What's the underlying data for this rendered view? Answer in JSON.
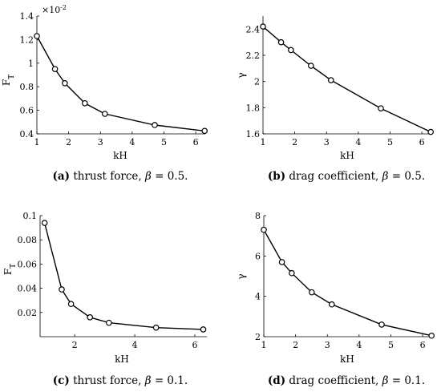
{
  "chart_data": [
    {
      "type": "line",
      "caption_tag": "(a)",
      "caption_text": " thrust force, ",
      "caption_param": "β",
      "caption_eq": " = 0.5.",
      "xlabel": "kH",
      "ylabel": "F",
      "ylabel_sub": "T",
      "y_multiplier_base": "×10",
      "y_multiplier_exp": "-2",
      "xlim": [
        1,
        6.3
      ],
      "ylim": [
        0.4,
        1.4
      ],
      "xticks": [
        1,
        2,
        3,
        4,
        5,
        6
      ],
      "yticks": [
        0.4,
        0.6,
        0.8,
        1,
        1.2,
        1.4
      ],
      "ytick_labels": [
        "0.4",
        "0.6",
        "0.8",
        "1",
        "1.2",
        "1.4"
      ],
      "x": [
        1.0,
        1.57,
        1.88,
        2.51,
        3.14,
        4.71,
        6.28
      ],
      "y": [
        1.23,
        0.95,
        0.83,
        0.66,
        0.57,
        0.475,
        0.425
      ]
    },
    {
      "type": "line",
      "caption_tag": "(b)",
      "caption_text": " drag coefficient, ",
      "caption_param": "β",
      "caption_eq": " = 0.5.",
      "xlabel": "kH",
      "ylabel": "γ",
      "xlim": [
        1,
        6.3
      ],
      "ylim": [
        1.6,
        2.5
      ],
      "xticks": [
        1,
        2,
        3,
        4,
        5,
        6
      ],
      "yticks": [
        1.6,
        1.8,
        2.0,
        2.2,
        2.4
      ],
      "ytick_labels": [
        "1.6",
        "1.8",
        "2",
        "2.2",
        "2.4"
      ],
      "x": [
        1.0,
        1.57,
        1.88,
        2.51,
        3.14,
        4.71,
        6.28
      ],
      "y": [
        2.42,
        2.3,
        2.24,
        2.12,
        2.01,
        1.795,
        1.615
      ]
    },
    {
      "type": "line",
      "caption_tag": "(c)",
      "caption_text": " thrust force, ",
      "caption_param": "β",
      "caption_eq": " = 0.1.",
      "xlabel": "kH",
      "ylabel": "F",
      "ylabel_sub": "T",
      "xlim": [
        0.85,
        6.4
      ],
      "ylim": [
        0,
        0.1
      ],
      "xticks": [
        2,
        4,
        6
      ],
      "yticks": [
        0.02,
        0.04,
        0.06,
        0.08,
        0.1
      ],
      "ytick_labels": [
        "0.02",
        "0.04",
        "0.06",
        "0.08",
        "0.1"
      ],
      "x": [
        1.0,
        1.57,
        1.88,
        2.51,
        3.14,
        4.71,
        6.28
      ],
      "y": [
        0.094,
        0.039,
        0.027,
        0.016,
        0.0115,
        0.0075,
        0.006
      ]
    },
    {
      "type": "line",
      "caption_tag": "(d)",
      "caption_text": " drag coefficient, ",
      "caption_param": "β",
      "caption_eq": " = 0.1.",
      "xlabel": "kH",
      "ylabel": "γ",
      "xlim": [
        1,
        6.3
      ],
      "ylim": [
        2,
        8
      ],
      "xticks": [
        1,
        2,
        3,
        4,
        5,
        6
      ],
      "yticks": [
        2,
        4,
        6,
        8
      ],
      "ytick_labels": [
        "2",
        "4",
        "6",
        "8"
      ],
      "x": [
        1.0,
        1.57,
        1.88,
        2.51,
        3.14,
        4.71,
        6.28
      ],
      "y": [
        7.3,
        5.7,
        5.15,
        4.2,
        3.6,
        2.6,
        2.05
      ]
    }
  ]
}
